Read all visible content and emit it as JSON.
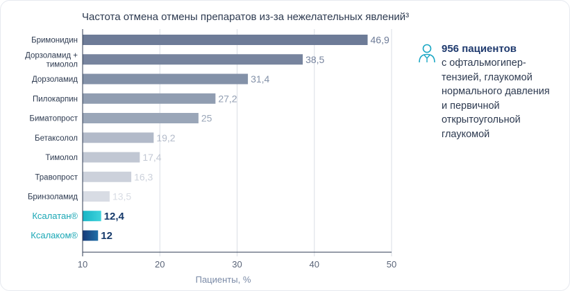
{
  "chart_data": {
    "type": "bar",
    "orientation": "horizontal",
    "title": "Частота отмена отмены препаратов из-за нежелательных явлений³",
    "xlabel": "Пациенты, %",
    "ylabel": "",
    "xlim": [
      10,
      50
    ],
    "xticks": [
      "10",
      "20",
      "30",
      "40",
      "50"
    ],
    "grid": true,
    "categories": [
      "Бримонидин",
      "Дорзоламид + тимолол",
      "Дорзоламид",
      "Пилокарпин",
      "Биматопрост",
      "Бетаксолол",
      "Тимолол",
      "Травопрост",
      "Бринзоламид",
      "Ксалатан®",
      "Ксалаком®"
    ],
    "values": [
      46.9,
      38.5,
      31.4,
      27.2,
      25,
      19.2,
      17.4,
      16.3,
      13.5,
      12.4,
      12
    ],
    "value_labels": [
      "46,9",
      "38,5",
      "31,4",
      "27,2",
      "25",
      "19,2",
      "17,4",
      "16,3",
      "13,5",
      "12,4",
      "12"
    ],
    "highlighted": [
      false,
      false,
      false,
      false,
      false,
      false,
      false,
      false,
      false,
      true,
      true
    ],
    "colors": [
      "#6d7b97",
      "#77849e",
      "#8391a8",
      "#909db1",
      "#9aa6b8",
      "#b2bac9",
      "#c1c7d3",
      "#ccd1db",
      "#d8dce4",
      "#2ec7d3",
      "#1b3f7a"
    ]
  },
  "info": {
    "icon": "patient-icon",
    "headline": "956 пациентов",
    "text": "с офтальмогипер-\nтензией, глаукомой\nнормального давления\nи первичной\nоткрытоугольной\nглаукомой"
  }
}
